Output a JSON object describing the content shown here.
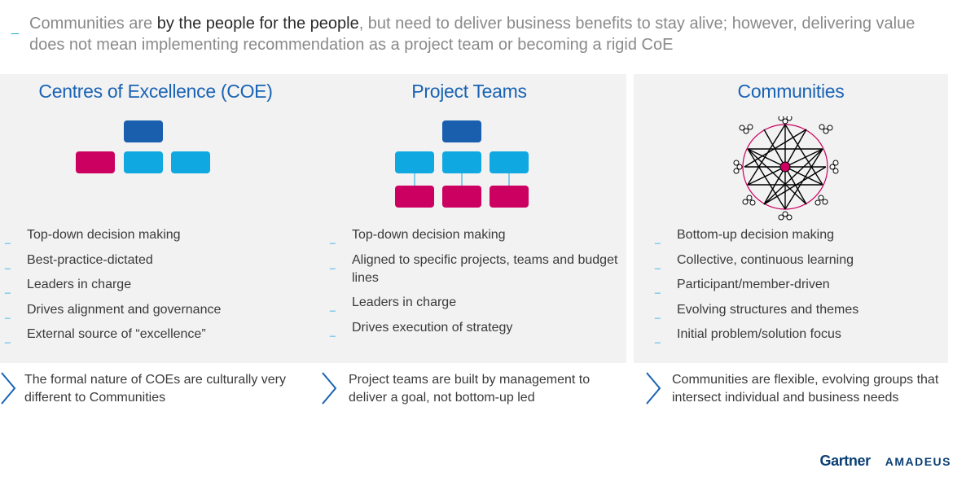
{
  "intro": {
    "dash": "_",
    "part1": "Communities are ",
    "emphasis": "by the people for the people",
    "part2": ", but need to deliver business benefits to stay alive; however, delivering value does not mean implementing recommendation as a project team or becoming a rigid CoE"
  },
  "panels": [
    {
      "title": "Centres of Excellence (COE)",
      "items": [
        "Top-down decision making",
        "Best-practice-dictated",
        "Leaders in charge",
        "Drives alignment and governance",
        "External source of “excellence”"
      ],
      "note": "The formal nature of COEs are culturally very different to Communities"
    },
    {
      "title": "Project Teams",
      "items": [
        "Top-down decision making",
        "Aligned to specific projects, teams and budget lines",
        "Leaders in charge",
        "Drives execution of strategy"
      ],
      "note": "Project teams are built by management to deliver a goal, not bottom-up led"
    },
    {
      "title": "Communities",
      "items": [
        "Bottom-up decision making",
        "Collective, continuous learning",
        "Participant/member-driven",
        "Evolving structures and themes",
        "Initial problem/solution focus"
      ],
      "note": "Communities are flexible, evolving groups that intersect individual and business needs"
    }
  ],
  "bullet": "_",
  "colors": {
    "dark_blue": "#1a5eae",
    "light_blue": "#10a8e0",
    "magenta": "#cc0060",
    "title_blue": "#1a63b4"
  },
  "brand": {
    "gartner": "Gartner",
    "amadeus": "AMADEUS"
  }
}
